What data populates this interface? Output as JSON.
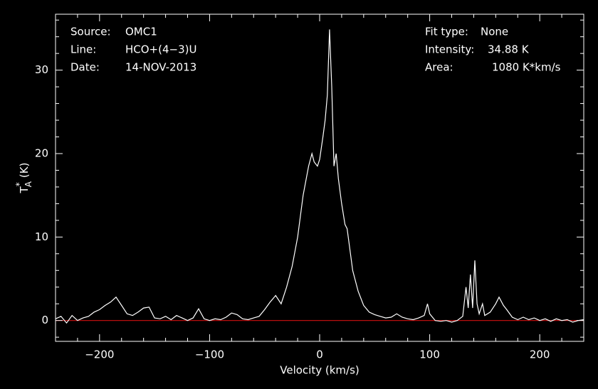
{
  "chart_data": {
    "type": "line",
    "xlabel": "Velocity (km/s)",
    "ylabel": {
      "main": "T",
      "sub": "A",
      "sup": "*",
      "unit": "(K)"
    },
    "info_left": [
      {
        "key": "Source:",
        "value": "OMC1"
      },
      {
        "key": "Line:",
        "value": "HCO+(4−3)U"
      },
      {
        "key": "Date:",
        "value": "14-NOV-2013"
      }
    ],
    "info_right": [
      {
        "key": "Fit type:",
        "value": "None"
      },
      {
        "key": "Intensity:",
        "value": "34.88 K"
      },
      {
        "key": "Area:",
        "value": "1080 K*km/s"
      }
    ],
    "color": "#ffffff",
    "baseline_color": "#d01010",
    "xlim": [
      -240,
      240
    ],
    "ylim": [
      -2.5,
      36.7
    ],
    "xticks": [
      {
        "value": -200,
        "label": "−200"
      },
      {
        "value": -100,
        "label": "−100"
      },
      0,
      100,
      200
    ],
    "yticks": [
      0,
      10,
      20,
      30
    ],
    "xminorticks": [
      -240,
      -220,
      -180,
      -160,
      -140,
      -120,
      -80,
      -60,
      -40,
      -20,
      20,
      40,
      60,
      80,
      120,
      140,
      160,
      180,
      220,
      240
    ],
    "yminorticks": [
      -2,
      2,
      4,
      6,
      8,
      12,
      14,
      16,
      18,
      22,
      24,
      26,
      28,
      32,
      34,
      36
    ],
    "x": [
      -240,
      -235,
      -230,
      -225,
      -220,
      -215,
      -210,
      -205,
      -200,
      -195,
      -190,
      -185,
      -180,
      -175,
      -170,
      -165,
      -160,
      -155,
      -150,
      -145,
      -140,
      -135,
      -130,
      -125,
      -120,
      -115,
      -110,
      -105,
      -100,
      -95,
      -90,
      -85,
      -80,
      -75,
      -70,
      -65,
      -60,
      -55,
      -50,
      -45,
      -40,
      -35,
      -30,
      -25,
      -20,
      -15,
      -10,
      -7,
      -5,
      -2,
      0,
      3,
      5,
      7,
      9,
      11,
      13,
      15,
      17,
      20,
      23,
      25,
      28,
      30,
      35,
      40,
      45,
      50,
      55,
      60,
      65,
      70,
      75,
      80,
      85,
      90,
      95,
      98,
      100,
      105,
      110,
      115,
      120,
      125,
      130,
      133,
      135,
      137,
      139,
      141,
      143,
      145,
      148,
      150,
      155,
      160,
      163,
      167,
      170,
      175,
      180,
      185,
      190,
      195,
      200,
      205,
      210,
      215,
      220,
      225,
      230,
      235,
      240
    ],
    "values": [
      0.2,
      0.5,
      -0.3,
      0.6,
      0,
      0.3,
      0.5,
      1.0,
      1.3,
      1.8,
      2.2,
      2.8,
      1.8,
      0.8,
      0.6,
      1.0,
      1.5,
      1.6,
      0.3,
      0.2,
      0.5,
      0.1,
      0.6,
      0.3,
      0,
      0.3,
      1.4,
      0.2,
      0,
      0.2,
      0.1,
      0.4,
      0.9,
      0.7,
      0.2,
      0.1,
      0.3,
      0.5,
      1.3,
      2.2,
      3.0,
      2.0,
      4.0,
      6.5,
      10.0,
      15.0,
      18.5,
      20.0,
      19.0,
      18.5,
      19.3,
      22,
      24,
      27,
      34.88,
      28,
      18.5,
      20,
      17,
      14,
      11.5,
      11,
      8,
      6,
      3.5,
      1.8,
      1.0,
      0.7,
      0.5,
      0.3,
      0.4,
      0.8,
      0.4,
      0.2,
      0.1,
      0.3,
      0.6,
      2.0,
      0.8,
      0,
      -0.1,
      0,
      -0.2,
      0,
      0.5,
      4.0,
      1.5,
      5.5,
      1.5,
      7.2,
      2.0,
      0.8,
      2.0,
      0.6,
      1.0,
      2.0,
      2.8,
      1.8,
      1.3,
      0.4,
      0.1,
      0.4,
      0.1,
      0.3,
      0,
      0.2,
      -0.1,
      0.2,
      0,
      0.1,
      -0.2,
      0,
      0.1
    ]
  }
}
